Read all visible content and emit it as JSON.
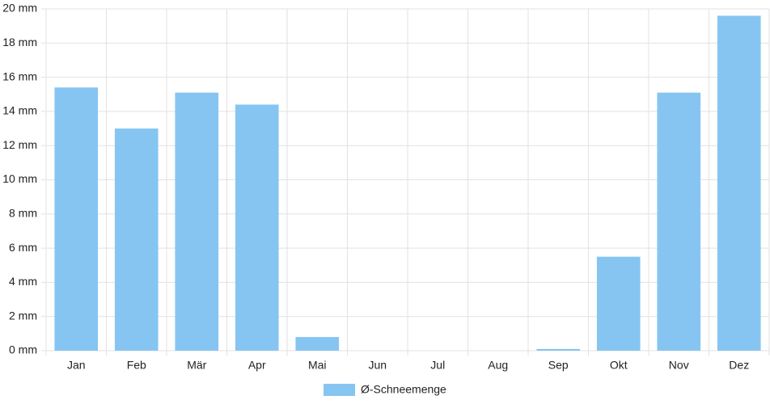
{
  "chart_data": {
    "type": "bar",
    "categories": [
      "Jan",
      "Feb",
      "Mär",
      "Apr",
      "Mai",
      "Jun",
      "Jul",
      "Aug",
      "Sep",
      "Okt",
      "Nov",
      "Dez"
    ],
    "series": [
      {
        "name": "Ø-Schneemenge",
        "color": "#86c5f1",
        "values": [
          15.4,
          13.0,
          15.1,
          14.4,
          0.8,
          0,
          0,
          0,
          0.1,
          5.5,
          15.1,
          19.6
        ]
      }
    ],
    "ylim": [
      0,
      20
    ],
    "yticks": [
      {
        "value": 0,
        "label": "0 mm"
      },
      {
        "value": 2,
        "label": "2 mm"
      },
      {
        "value": 4,
        "label": "4 mm"
      },
      {
        "value": 6,
        "label": "6 mm"
      },
      {
        "value": 8,
        "label": "8 mm"
      },
      {
        "value": 10,
        "label": "10 mm"
      },
      {
        "value": 12,
        "label": "12 mm"
      },
      {
        "value": 14,
        "label": "14 mm"
      },
      {
        "value": 16,
        "label": "16 mm"
      },
      {
        "value": 18,
        "label": "18 mm"
      },
      {
        "value": 20,
        "label": "20 mm"
      }
    ],
    "grid": true,
    "legend": "bottom"
  }
}
